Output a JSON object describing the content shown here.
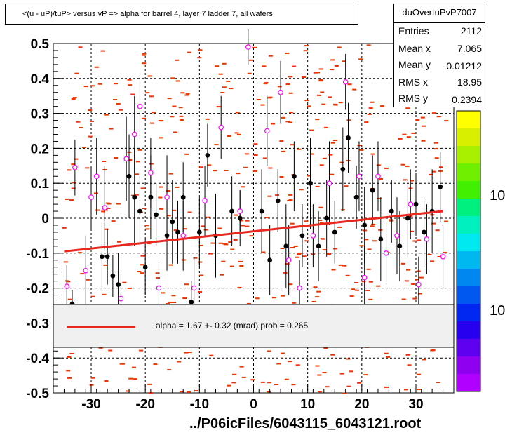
{
  "title": "<(u - uP)/tuP> versus  vP => alpha for barrel 4, layer 7 ladder 7, all wafers",
  "stats": {
    "name": "duOvertuPvP7007",
    "rows": [
      {
        "label": "Entries",
        "value": "2112"
      },
      {
        "label": "Mean x",
        "value": "7.065"
      },
      {
        "label": "Mean y",
        "value": "-0.01212"
      },
      {
        "label": "RMS x",
        "value": "18.95"
      },
      {
        "label": "RMS y",
        "value": "0.2394"
      }
    ]
  },
  "xlabel": "../P06icFiles/6043115_6043121.root",
  "legend": {
    "text": "alpha =    1.67 +-  0.32 (mrad) prob = 0.265",
    "line_color": "#e8281e"
  },
  "right_labels": [
    "10",
    "10"
  ],
  "chart_data": {
    "type": "scatter",
    "xlim": [
      -37,
      37
    ],
    "ylim": [
      -0.5,
      0.5
    ],
    "xticks": [
      -30,
      -20,
      -10,
      0,
      10,
      20,
      30
    ],
    "xtick_labels": [
      "-30",
      "-20",
      "-10",
      "0",
      "10",
      "20",
      "30"
    ],
    "yticks": [
      -0.5,
      -0.4,
      -0.3,
      -0.2,
      -0.1,
      0,
      0.1,
      0.2,
      0.3,
      0.4,
      0.5
    ],
    "ytick_labels": [
      "-0.5",
      "-0.4",
      "-0.3",
      "-0.2",
      "-0.1",
      "0",
      "0.1",
      "0.2",
      "0.3",
      "0.4",
      "0.5"
    ],
    "grid": true,
    "colors": {
      "fit": "#e8281e",
      "hist": "#ee3300",
      "profile_filled": "#000000",
      "profile_open": "#ff00ff"
    },
    "fit_line": {
      "x": [
        -35,
        35
      ],
      "y": [
        -0.095,
        0.02
      ]
    },
    "colorbar_colors": [
      "#ffff00",
      "#d8f000",
      "#a8f000",
      "#70f000",
      "#40f000",
      "#00f080",
      "#00f0c0",
      "#00e8f0",
      "#00b8f0",
      "#0088f0",
      "#0058f0",
      "#0028f0",
      "#2800f0",
      "#6000f0",
      "#9000f0",
      "#b000ff"
    ],
    "series": [
      {
        "marker": "filled",
        "points": [
          {
            "x": -33.5,
            "y": -0.245,
            "err": 0.04
          },
          {
            "x": -28.0,
            "y": -0.11,
            "err": 0.1
          },
          {
            "x": -27.0,
            "y": -0.11,
            "err": 0.08
          },
          {
            "x": -26.0,
            "y": -0.165,
            "err": 0.06
          },
          {
            "x": -25.0,
            "y": -0.19,
            "err": 0.09
          },
          {
            "x": -23.0,
            "y": 0.12,
            "err": 0.12
          },
          {
            "x": -22.0,
            "y": 0.06,
            "err": 0.14
          },
          {
            "x": -21.0,
            "y": 0.02,
            "err": 0.1
          },
          {
            "x": -20.0,
            "y": -0.14,
            "err": 0.08
          },
          {
            "x": -19.0,
            "y": 0.06,
            "err": 0.12
          },
          {
            "x": -18.0,
            "y": 0.01,
            "err": 0.09
          },
          {
            "x": -16.0,
            "y": -0.05,
            "err": 0.1
          },
          {
            "x": -15.0,
            "y": -0.01,
            "err": 0.12
          },
          {
            "x": -14.0,
            "y": -0.04,
            "err": 0.09
          },
          {
            "x": -13.0,
            "y": 0.06,
            "err": 0.1
          },
          {
            "x": -11.5,
            "y": -0.24,
            "err": 0.06
          },
          {
            "x": -10.0,
            "y": -0.04,
            "err": 0.1
          },
          {
            "x": -8.5,
            "y": 0.18,
            "err": 0.09
          },
          {
            "x": -7.0,
            "y": -0.05,
            "err": 0.12
          },
          {
            "x": -4.0,
            "y": 0.02,
            "err": 0.1
          },
          {
            "x": -2.5,
            "y": 0.0,
            "err": 0.08
          },
          {
            "x": 1.5,
            "y": 0.02,
            "err": 0.12
          },
          {
            "x": 3.0,
            "y": -0.12,
            "err": 0.1
          },
          {
            "x": 4.5,
            "y": 0.05,
            "err": 0.09
          },
          {
            "x": 6.0,
            "y": -0.08,
            "err": 0.12
          },
          {
            "x": 7.5,
            "y": 0.12,
            "err": 0.1
          },
          {
            "x": 9.0,
            "y": -0.05,
            "err": 0.09
          },
          {
            "x": 10.5,
            "y": 0.1,
            "err": 0.13
          },
          {
            "x": 12.0,
            "y": -0.08,
            "err": 0.1
          },
          {
            "x": 13.5,
            "y": 0.0,
            "err": 0.11
          },
          {
            "x": 15.0,
            "y": -0.04,
            "err": 0.09
          },
          {
            "x": 16.5,
            "y": 0.14,
            "err": 0.12
          },
          {
            "x": 17.5,
            "y": 0.23,
            "err": 0.1
          },
          {
            "x": 19.0,
            "y": 0.06,
            "err": 0.09
          },
          {
            "x": 20.5,
            "y": -0.02,
            "err": 0.11
          },
          {
            "x": 22.0,
            "y": 0.08,
            "err": 0.1
          },
          {
            "x": 23.5,
            "y": -0.06,
            "err": 0.12
          },
          {
            "x": 25.5,
            "y": 0.02,
            "err": 0.09
          },
          {
            "x": 27.0,
            "y": -0.08,
            "err": 0.1
          },
          {
            "x": 28.5,
            "y": 0.0,
            "err": 0.11
          },
          {
            "x": 30.0,
            "y": 0.04,
            "err": 0.09
          },
          {
            "x": 31.5,
            "y": -0.04,
            "err": 0.1
          },
          {
            "x": 33.0,
            "y": 0.02,
            "err": 0.12
          },
          {
            "x": 34.5,
            "y": 0.09,
            "err": 0.1
          }
        ]
      },
      {
        "marker": "open",
        "points": [
          {
            "x": -34.5,
            "y": -0.195,
            "err": 0.06
          },
          {
            "x": -33.0,
            "y": 0.145,
            "err": 0.08
          },
          {
            "x": -31.0,
            "y": -0.15,
            "err": 0.1
          },
          {
            "x": -30.0,
            "y": 0.06,
            "err": 0.09
          },
          {
            "x": -29.0,
            "y": 0.12,
            "err": 0.11
          },
          {
            "x": -27.5,
            "y": 0.03,
            "err": 0.12
          },
          {
            "x": -24.5,
            "y": -0.23,
            "err": 0.07
          },
          {
            "x": -23.5,
            "y": 0.17,
            "err": 0.12
          },
          {
            "x": -22.0,
            "y": 0.24,
            "err": 0.11
          },
          {
            "x": -21.0,
            "y": 0.32,
            "err": 0.09
          },
          {
            "x": -19.0,
            "y": 0.13,
            "err": 0.1
          },
          {
            "x": -17.5,
            "y": -0.2,
            "err": 0.08
          },
          {
            "x": -16.0,
            "y": 0.06,
            "err": 0.12
          },
          {
            "x": -13.0,
            "y": -0.05,
            "err": 0.1
          },
          {
            "x": -11.0,
            "y": -0.2,
            "err": 0.09
          },
          {
            "x": -9.0,
            "y": 0.05,
            "err": 0.1
          },
          {
            "x": -6.0,
            "y": 0.26,
            "err": 0.09
          },
          {
            "x": -2.5,
            "y": 0.02,
            "err": 0.06
          },
          {
            "x": -1.0,
            "y": 0.49,
            "err": 0.05
          },
          {
            "x": 2.5,
            "y": 0.25,
            "err": 0.1
          },
          {
            "x": 5.0,
            "y": 0.36,
            "err": 0.09
          },
          {
            "x": 6.5,
            "y": -0.12,
            "err": 0.1
          },
          {
            "x": 8.5,
            "y": -0.2,
            "err": 0.08
          },
          {
            "x": 11.0,
            "y": -0.05,
            "err": 0.09
          },
          {
            "x": 14.0,
            "y": 0.1,
            "err": 0.12
          },
          {
            "x": 17.0,
            "y": 0.39,
            "err": 0.08
          },
          {
            "x": 19.5,
            "y": 0.12,
            "err": 0.1
          },
          {
            "x": 20.5,
            "y": -0.17,
            "err": 0.09
          },
          {
            "x": 23.0,
            "y": 0.12,
            "err": 0.1
          },
          {
            "x": 24.5,
            "y": -0.1,
            "err": 0.09
          },
          {
            "x": 26.5,
            "y": -0.05,
            "err": 0.11
          },
          {
            "x": 29.0,
            "y": 0.04,
            "err": 0.1
          },
          {
            "x": 30.5,
            "y": -0.19,
            "err": 0.08
          },
          {
            "x": 32.0,
            "y": -0.06,
            "err": 0.1
          },
          {
            "x": 35.0,
            "y": -0.11,
            "err": 0.09
          }
        ]
      }
    ]
  }
}
